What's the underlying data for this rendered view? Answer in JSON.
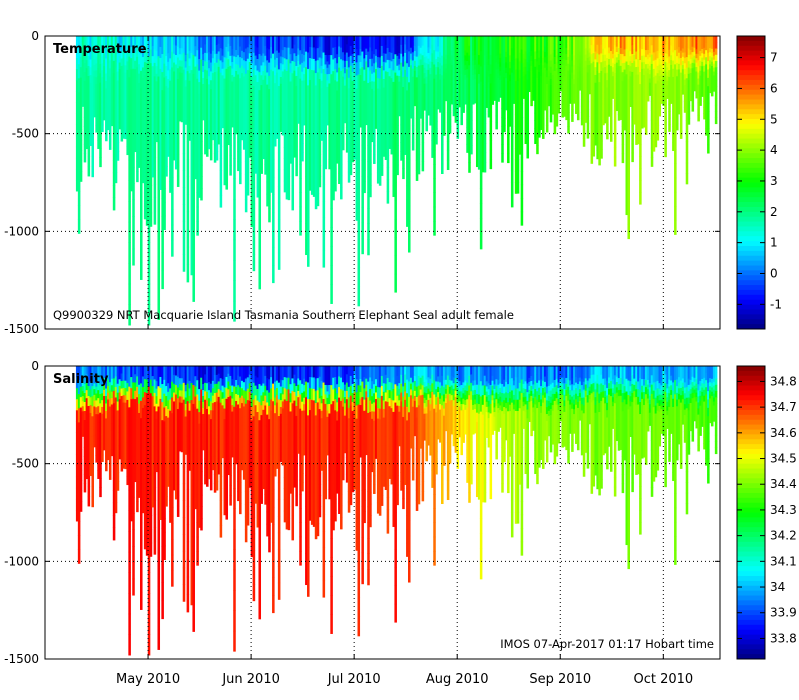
{
  "chart_data": [
    {
      "type": "heatmap",
      "title": "Temperature",
      "annotation": "Q9900329 NRT Macquarie Island Tasmania Southern Elephant Seal adult female",
      "ylim": [
        -1500,
        0
      ],
      "yticks": [
        0,
        -500,
        -1000,
        -1500
      ],
      "ytick_labels": [
        "0",
        "-500",
        "-1000",
        "-1500"
      ],
      "xlim": [
        -1.0,
        5.55
      ],
      "xticks": [
        0,
        1,
        2,
        3,
        4,
        5
      ],
      "colorbar": {
        "range": [
          -1.8,
          7.7
        ],
        "ticks": [
          7,
          6,
          5,
          4,
          3,
          2,
          1,
          0,
          -1
        ],
        "tick_labels": [
          "7",
          "6",
          "5",
          "4",
          "3",
          "2",
          "1",
          "0",
          "-1"
        ]
      },
      "profile_summary": {
        "x_months": [
          -0.7,
          0,
          0.5,
          1,
          1.5,
          2,
          2.5,
          3,
          3.5,
          4,
          4.5,
          5,
          5.5
        ],
        "surface_value": [
          1.3,
          1.0,
          0.3,
          -0.3,
          -0.5,
          -0.8,
          -0.6,
          2.5,
          3.0,
          3.5,
          5.5,
          5.5,
          6.0
        ],
        "deep_value": [
          1.8,
          1.8,
          1.8,
          1.8,
          1.8,
          1.9,
          2.1,
          2.2,
          2.8,
          3.5,
          4.0,
          4.0,
          3.5
        ],
        "max_depth": [
          -1000,
          -1350,
          -1050,
          -1250,
          -1100,
          -1250,
          -1000,
          -900,
          -850,
          -700,
          -900,
          -850,
          -750
        ]
      }
    },
    {
      "type": "heatmap",
      "title": "Salinity",
      "annotation": "IMOS 07-Apr-2017 01:17 Hobart time",
      "ylim": [
        -1500,
        0
      ],
      "yticks": [
        0,
        -500,
        -1000,
        -1500
      ],
      "ytick_labels": [
        "0",
        "-500",
        "-1000",
        "-1500"
      ],
      "xlim": [
        -1.0,
        5.55
      ],
      "xticks": [
        0,
        1,
        2,
        3,
        4,
        5
      ],
      "xtick_labels": [
        "May 2010",
        "Jun 2010",
        "Jul 2010",
        "Aug 2010",
        "Sep 2010",
        "Oct 2010"
      ],
      "colorbar": {
        "range": [
          33.72,
          34.86
        ],
        "ticks": [
          34.8,
          34.7,
          34.6,
          34.5,
          34.4,
          34.3,
          34.2,
          34.1,
          34,
          33.9,
          33.8
        ],
        "tick_labels": [
          "34.8",
          "34.7",
          "34.6",
          "34.5",
          "34.4",
          "34.3",
          "34.2",
          "34.1",
          "34",
          "33.9",
          "33.8"
        ]
      },
      "profile_summary": {
        "x_months": [
          -0.7,
          0,
          0.5,
          1,
          1.5,
          2,
          2.5,
          3,
          3.5,
          4,
          4.5,
          5,
          5.5
        ],
        "surface_value": [
          33.95,
          33.9,
          33.85,
          33.85,
          33.85,
          33.9,
          34.0,
          33.95,
          33.95,
          33.95,
          34.0,
          34.0,
          34.0
        ],
        "deep_value": [
          34.72,
          34.72,
          34.72,
          34.72,
          34.72,
          34.72,
          34.7,
          34.55,
          34.45,
          34.4,
          34.4,
          34.38,
          34.35
        ],
        "max_depth": [
          -1000,
          -1350,
          -1050,
          -1250,
          -1100,
          -1250,
          -1000,
          -900,
          -850,
          -700,
          -900,
          -850,
          -750
        ]
      }
    }
  ],
  "colormap": [
    "#00007f",
    "#0000ff",
    "#007fff",
    "#00ffff",
    "#00ff7f",
    "#00ff00",
    "#7fff00",
    "#ffff00",
    "#ff7f00",
    "#ff0000",
    "#7f0000"
  ]
}
